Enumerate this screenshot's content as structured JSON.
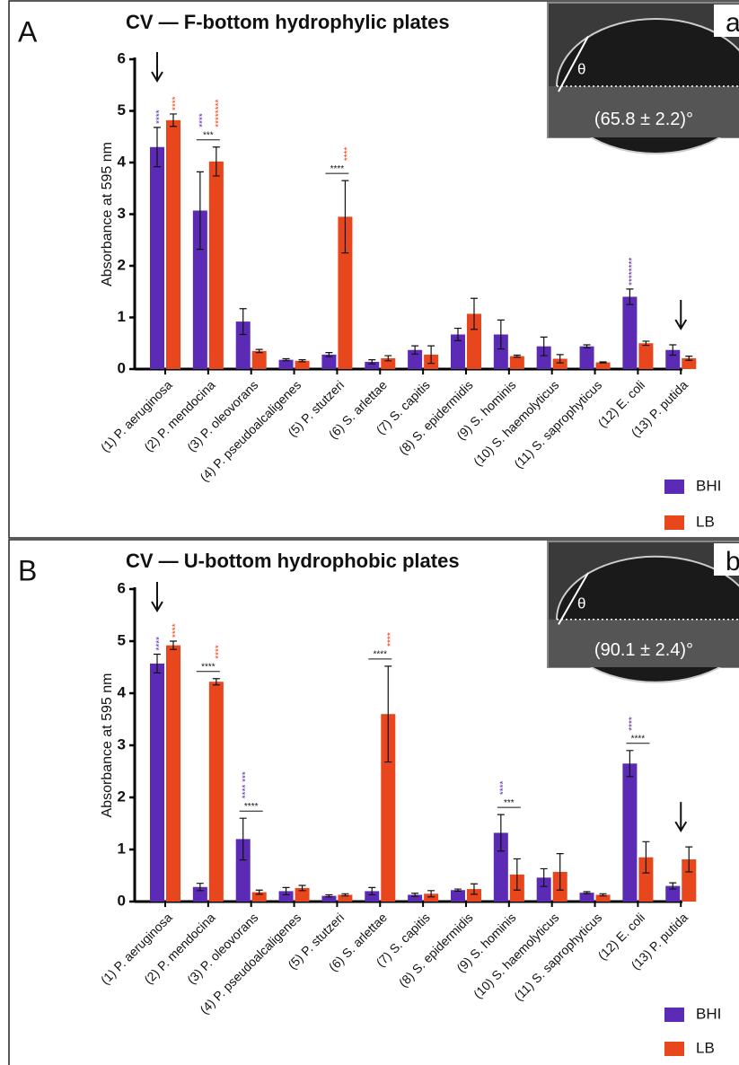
{
  "chart_data": [
    {
      "type": "bar",
      "panel_label": "A",
      "title": "CV — F-bottom hydrophylic plates",
      "y_label": "Absorbance at 595 nm",
      "inset": {
        "letter": "a",
        "angle_symbol": "θ",
        "label": "(65.8 ± 2.2)°"
      },
      "categories": [
        "(1) P. aeruginosa",
        "(2) P. mendocina",
        "(3) P. oleovorans",
        "(4) P. pseudoalcaligenes",
        "(5) P. stutzeri",
        "(6) S. arlettae",
        "(7) S. capitis",
        "(8) S. epidermidis",
        "(9) S. hominis",
        "(10) S. haemolyticus",
        "(11) S. saprophyticus",
        "(12) E. coli",
        "(13) P. putida"
      ],
      "series": [
        {
          "name": "BHI",
          "color": "#5b2bb5",
          "values": [
            4.3,
            3.07,
            0.92,
            0.18,
            0.28,
            0.14,
            0.37,
            0.67,
            0.67,
            0.44,
            0.44,
            1.4,
            0.37
          ],
          "errors": [
            0.38,
            0.75,
            0.25,
            0.02,
            0.04,
            0.04,
            0.08,
            0.12,
            0.28,
            0.18,
            0.03,
            0.15,
            0.1
          ]
        },
        {
          "name": "LB",
          "color": "#e8461c",
          "values": [
            4.82,
            4.02,
            0.35,
            0.16,
            2.95,
            0.21,
            0.28,
            1.07,
            0.25,
            0.2,
            0.13,
            0.5,
            0.21
          ],
          "errors": [
            0.12,
            0.28,
            0.03,
            0.02,
            0.7,
            0.05,
            0.17,
            0.3,
            0.02,
            0.08,
            0.01,
            0.04,
            0.04
          ]
        }
      ],
      "ylim": [
        0,
        6
      ],
      "yticks": [
        0,
        1,
        2,
        3,
        4,
        5,
        6
      ],
      "annotations": [
        {
          "text": "****",
          "category": "(1) P. aeruginosa",
          "over": "BHI"
        },
        {
          "text": "****",
          "category": "(1) P. aeruginosa",
          "over": "LB"
        },
        {
          "text": "****",
          "category": "(2) P. mendocina",
          "over": "BHI"
        },
        {
          "text": "********",
          "category": "(2) P. mendocina",
          "over": "LB"
        },
        {
          "text": "***",
          "category": "(2) P. mendocina",
          "bracket": true
        },
        {
          "text": "****",
          "category": "(5) P. stutzeri",
          "over": "LB"
        },
        {
          "text": "****",
          "category": "(5) P. stutzeri",
          "bracket": true
        },
        {
          "text": "********",
          "category": "(12) E. coli",
          "over": "BHI"
        }
      ]
    },
    {
      "type": "bar",
      "panel_label": "B",
      "title": "CV — U-bottom hydrophobic plates",
      "y_label": "Absorbance at 595 nm",
      "inset": {
        "letter": "b",
        "angle_symbol": "θ",
        "label": "(90.1 ± 2.4)°"
      },
      "categories": [
        "(1) P. aeruginosa",
        "(2) P. mendocina",
        "(3) P. oleovorans",
        "(4) P. pseudoalcaligenes",
        "(5) P. stutzeri",
        "(6) S. arlettae",
        "(7) S. capitis",
        "(8) S. epidermidis",
        "(9) S. hominis",
        "(10) S. haemolyticus",
        "(11) S. saprophyticus",
        "(12) E. coli",
        "(13) P. putida"
      ],
      "series": [
        {
          "name": "BHI",
          "color": "#5b2bb5",
          "values": [
            4.57,
            0.28,
            1.2,
            0.2,
            0.11,
            0.2,
            0.13,
            0.22,
            1.32,
            0.46,
            0.17,
            2.65,
            0.3
          ],
          "errors": [
            0.18,
            0.07,
            0.4,
            0.07,
            0.02,
            0.07,
            0.03,
            0.02,
            0.35,
            0.17,
            0.02,
            0.25,
            0.06
          ]
        },
        {
          "name": "LB",
          "color": "#e8461c",
          "values": [
            4.92,
            4.22,
            0.18,
            0.26,
            0.13,
            3.6,
            0.15,
            0.24,
            0.52,
            0.57,
            0.13,
            0.85,
            0.81
          ],
          "errors": [
            0.08,
            0.06,
            0.04,
            0.05,
            0.02,
            0.92,
            0.06,
            0.1,
            0.3,
            0.35,
            0.02,
            0.3,
            0.24
          ]
        }
      ],
      "ylim": [
        0,
        6
      ],
      "yticks": [
        0,
        1,
        2,
        3,
        4,
        5,
        6
      ],
      "annotations": [
        {
          "text": "****",
          "category": "(1) P. aeruginosa",
          "over": "BHI"
        },
        {
          "text": "****",
          "category": "(1) P. aeruginosa",
          "over": "LB"
        },
        {
          "text": "****",
          "category": "(2) P. mendocina",
          "over": "LB"
        },
        {
          "text": "****",
          "category": "(2) P. mendocina",
          "bracket": true
        },
        {
          "text": "**** ***",
          "category": "(3) P. oleovorans",
          "over": "BHI"
        },
        {
          "text": "****",
          "category": "(3) P. oleovorans",
          "bracket": true
        },
        {
          "text": "****",
          "category": "(6) S. arlettae",
          "over": "LB"
        },
        {
          "text": "****",
          "category": "(6) S. arlettae",
          "bracket": true
        },
        {
          "text": "****",
          "category": "(9) S. hominis",
          "over": "BHI"
        },
        {
          "text": "***",
          "category": "(9) S. hominis",
          "bracket": true
        },
        {
          "text": "****",
          "category": "(12) E. coli",
          "over": "BHI"
        },
        {
          "text": "****",
          "category": "(12) E. coli",
          "bracket": true
        }
      ]
    }
  ]
}
